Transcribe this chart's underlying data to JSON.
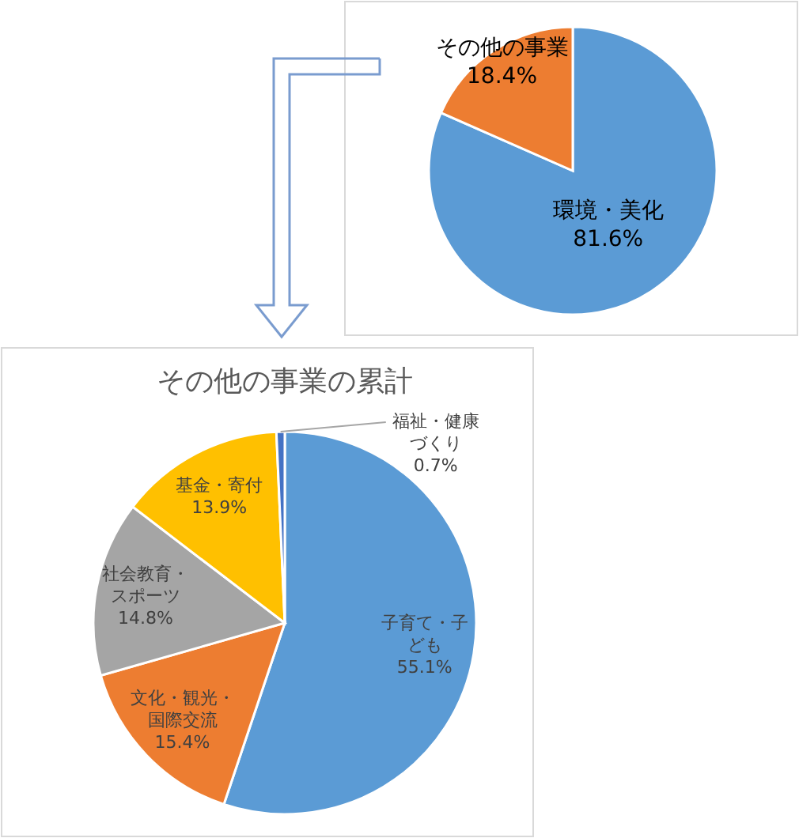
{
  "chart_data": [
    {
      "type": "pie",
      "categories": [
        "環境・美化",
        "その他の事業"
      ],
      "values": [
        81.6,
        18.4
      ],
      "colors": [
        "#5b9bd5",
        "#ed7d31"
      ],
      "value_labels": [
        "81.6%",
        "18.4%"
      ],
      "legend": false
    },
    {
      "type": "pie",
      "title": "その他の事業の累計",
      "categories": [
        "子育て・子ども",
        "文化・観光・国際交流",
        "社会教育・スポーツ",
        "基金・寄付",
        "福祉・健康づくり"
      ],
      "values": [
        55.1,
        15.4,
        14.8,
        13.9,
        0.7
      ],
      "colors": [
        "#5b9bd5",
        "#ed7d31",
        "#a5a5a5",
        "#ffc000",
        "#4472c4"
      ],
      "value_labels": [
        "55.1%",
        "15.4%",
        "14.8%",
        "13.9%",
        "0.7%"
      ],
      "legend": false
    }
  ]
}
